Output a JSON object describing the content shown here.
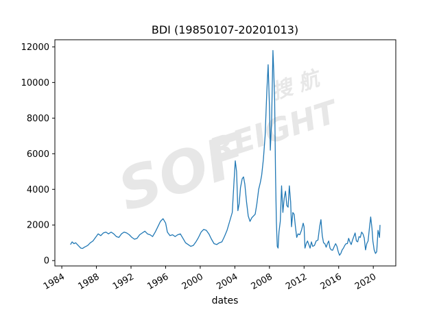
{
  "chart_data": {
    "type": "line",
    "title": "BDI (19850107-20201013)",
    "xlabel": "dates",
    "ylabel": "",
    "legend": "none",
    "grid": false,
    "line_color": "#1f77b4",
    "x_ticks": [
      "1984",
      "1988",
      "1992",
      "1996",
      "2000",
      "2004",
      "2008",
      "2012",
      "2016",
      "2020"
    ],
    "x_tick_values": [
      1984,
      1988,
      1992,
      1996,
      2000,
      2004,
      2008,
      2012,
      2016,
      2020
    ],
    "y_ticks": [
      "0",
      "2000",
      "4000",
      "6000",
      "8000",
      "10000",
      "12000"
    ],
    "y_tick_values": [
      0,
      2000,
      4000,
      6000,
      8000,
      10000,
      12000
    ],
    "xlim": [
      1983.2,
      2022.6
    ],
    "ylim": [
      -300,
      12400
    ],
    "series_name": "BDI",
    "points": [
      [
        1985.0,
        900
      ],
      [
        1985.2,
        1050
      ],
      [
        1985.4,
        950
      ],
      [
        1985.6,
        1000
      ],
      [
        1985.8,
        900
      ],
      [
        1986.0,
        800
      ],
      [
        1986.2,
        700
      ],
      [
        1986.4,
        680
      ],
      [
        1986.6,
        750
      ],
      [
        1986.8,
        800
      ],
      [
        1987.0,
        850
      ],
      [
        1987.3,
        1000
      ],
      [
        1987.6,
        1100
      ],
      [
        1987.9,
        1300
      ],
      [
        1988.2,
        1500
      ],
      [
        1988.5,
        1400
      ],
      [
        1988.8,
        1550
      ],
      [
        1989.1,
        1600
      ],
      [
        1989.4,
        1500
      ],
      [
        1989.7,
        1600
      ],
      [
        1990.0,
        1500
      ],
      [
        1990.3,
        1350
      ],
      [
        1990.6,
        1300
      ],
      [
        1990.9,
        1500
      ],
      [
        1991.2,
        1600
      ],
      [
        1991.5,
        1550
      ],
      [
        1991.8,
        1450
      ],
      [
        1992.1,
        1300
      ],
      [
        1992.4,
        1200
      ],
      [
        1992.7,
        1250
      ],
      [
        1993.0,
        1450
      ],
      [
        1993.3,
        1550
      ],
      [
        1993.6,
        1650
      ],
      [
        1993.9,
        1500
      ],
      [
        1994.2,
        1450
      ],
      [
        1994.5,
        1350
      ],
      [
        1994.8,
        1600
      ],
      [
        1995.1,
        1900
      ],
      [
        1995.4,
        2200
      ],
      [
        1995.7,
        2350
      ],
      [
        1996.0,
        2100
      ],
      [
        1996.2,
        1600
      ],
      [
        1996.5,
        1400
      ],
      [
        1996.8,
        1450
      ],
      [
        1997.1,
        1350
      ],
      [
        1997.4,
        1450
      ],
      [
        1997.7,
        1500
      ],
      [
        1998.0,
        1250
      ],
      [
        1998.3,
        1000
      ],
      [
        1998.6,
        900
      ],
      [
        1998.9,
        800
      ],
      [
        1999.2,
        850
      ],
      [
        1999.5,
        1050
      ],
      [
        1999.8,
        1300
      ],
      [
        2000.1,
        1600
      ],
      [
        2000.4,
        1750
      ],
      [
        2000.7,
        1700
      ],
      [
        2001.0,
        1500
      ],
      [
        2001.3,
        1200
      ],
      [
        2001.6,
        950
      ],
      [
        2001.9,
        900
      ],
      [
        2002.2,
        1000
      ],
      [
        2002.5,
        1050
      ],
      [
        2002.8,
        1350
      ],
      [
        2003.1,
        1700
      ],
      [
        2003.4,
        2200
      ],
      [
        2003.7,
        2700
      ],
      [
        2003.9,
        4400
      ],
      [
        2004.05,
        5600
      ],
      [
        2004.2,
        5000
      ],
      [
        2004.35,
        2800
      ],
      [
        2004.5,
        3200
      ],
      [
        2004.65,
        4100
      ],
      [
        2004.85,
        4600
      ],
      [
        2005.0,
        4700
      ],
      [
        2005.15,
        4300
      ],
      [
        2005.35,
        3300
      ],
      [
        2005.55,
        2500
      ],
      [
        2005.75,
        2200
      ],
      [
        2005.95,
        2400
      ],
      [
        2006.15,
        2500
      ],
      [
        2006.35,
        2600
      ],
      [
        2006.55,
        3200
      ],
      [
        2006.75,
        4000
      ],
      [
        2006.95,
        4400
      ],
      [
        2007.1,
        4800
      ],
      [
        2007.3,
        5700
      ],
      [
        2007.5,
        7000
      ],
      [
        2007.7,
        9500
      ],
      [
        2007.85,
        11000
      ],
      [
        2008.0,
        8700
      ],
      [
        2008.1,
        6200
      ],
      [
        2008.25,
        7900
      ],
      [
        2008.4,
        11800
      ],
      [
        2008.5,
        10600
      ],
      [
        2008.6,
        9000
      ],
      [
        2008.7,
        4800
      ],
      [
        2008.8,
        2200
      ],
      [
        2008.9,
        800
      ],
      [
        2009.0,
        700
      ],
      [
        2009.1,
        1600
      ],
      [
        2009.25,
        2200
      ],
      [
        2009.4,
        4200
      ],
      [
        2009.55,
        2700
      ],
      [
        2009.7,
        3500
      ],
      [
        2009.85,
        3900
      ],
      [
        2010.0,
        3100
      ],
      [
        2010.15,
        3000
      ],
      [
        2010.3,
        4200
      ],
      [
        2010.45,
        3300
      ],
      [
        2010.55,
        1900
      ],
      [
        2010.7,
        2700
      ],
      [
        2010.85,
        2600
      ],
      [
        2011.0,
        1900
      ],
      [
        2011.15,
        1300
      ],
      [
        2011.3,
        1500
      ],
      [
        2011.5,
        1450
      ],
      [
        2011.7,
        1700
      ],
      [
        2011.9,
        2100
      ],
      [
        2012.0,
        1900
      ],
      [
        2012.1,
        700
      ],
      [
        2012.25,
        950
      ],
      [
        2012.4,
        1100
      ],
      [
        2012.55,
        900
      ],
      [
        2012.7,
        700
      ],
      [
        2012.85,
        1050
      ],
      [
        2013.0,
        800
      ],
      [
        2013.2,
        850
      ],
      [
        2013.4,
        1100
      ],
      [
        2013.6,
        1150
      ],
      [
        2013.8,
        1900
      ],
      [
        2013.95,
        2300
      ],
      [
        2014.1,
        1400
      ],
      [
        2014.25,
        1000
      ],
      [
        2014.4,
        950
      ],
      [
        2014.55,
        750
      ],
      [
        2014.7,
        950
      ],
      [
        2014.85,
        1100
      ],
      [
        2015.0,
        700
      ],
      [
        2015.15,
        600
      ],
      [
        2015.3,
        580
      ],
      [
        2015.5,
        800
      ],
      [
        2015.65,
        950
      ],
      [
        2015.8,
        800
      ],
      [
        2015.95,
        500
      ],
      [
        2016.1,
        300
      ],
      [
        2016.25,
        400
      ],
      [
        2016.4,
        600
      ],
      [
        2016.55,
        700
      ],
      [
        2016.7,
        850
      ],
      [
        2016.85,
        950
      ],
      [
        2017.0,
        950
      ],
      [
        2017.15,
        1250
      ],
      [
        2017.3,
        1050
      ],
      [
        2017.45,
        900
      ],
      [
        2017.6,
        1150
      ],
      [
        2017.75,
        1350
      ],
      [
        2017.9,
        1550
      ],
      [
        2018.05,
        1100
      ],
      [
        2018.2,
        1050
      ],
      [
        2018.35,
        1350
      ],
      [
        2018.5,
        1300
      ],
      [
        2018.65,
        1600
      ],
      [
        2018.8,
        1500
      ],
      [
        2018.95,
        1270
      ],
      [
        2019.1,
        600
      ],
      [
        2019.25,
        950
      ],
      [
        2019.4,
        1100
      ],
      [
        2019.55,
        1800
      ],
      [
        2019.7,
        2450
      ],
      [
        2019.85,
        1800
      ],
      [
        2019.95,
        1100
      ],
      [
        2020.1,
        600
      ],
      [
        2020.25,
        400
      ],
      [
        2020.4,
        500
      ],
      [
        2020.55,
        1700
      ],
      [
        2020.65,
        1500
      ],
      [
        2020.72,
        1300
      ],
      [
        2020.78,
        2000
      ]
    ],
    "watermark": {
      "line1": "搜 航",
      "line2": "SOF",
      "line3": "REIGHT"
    }
  }
}
